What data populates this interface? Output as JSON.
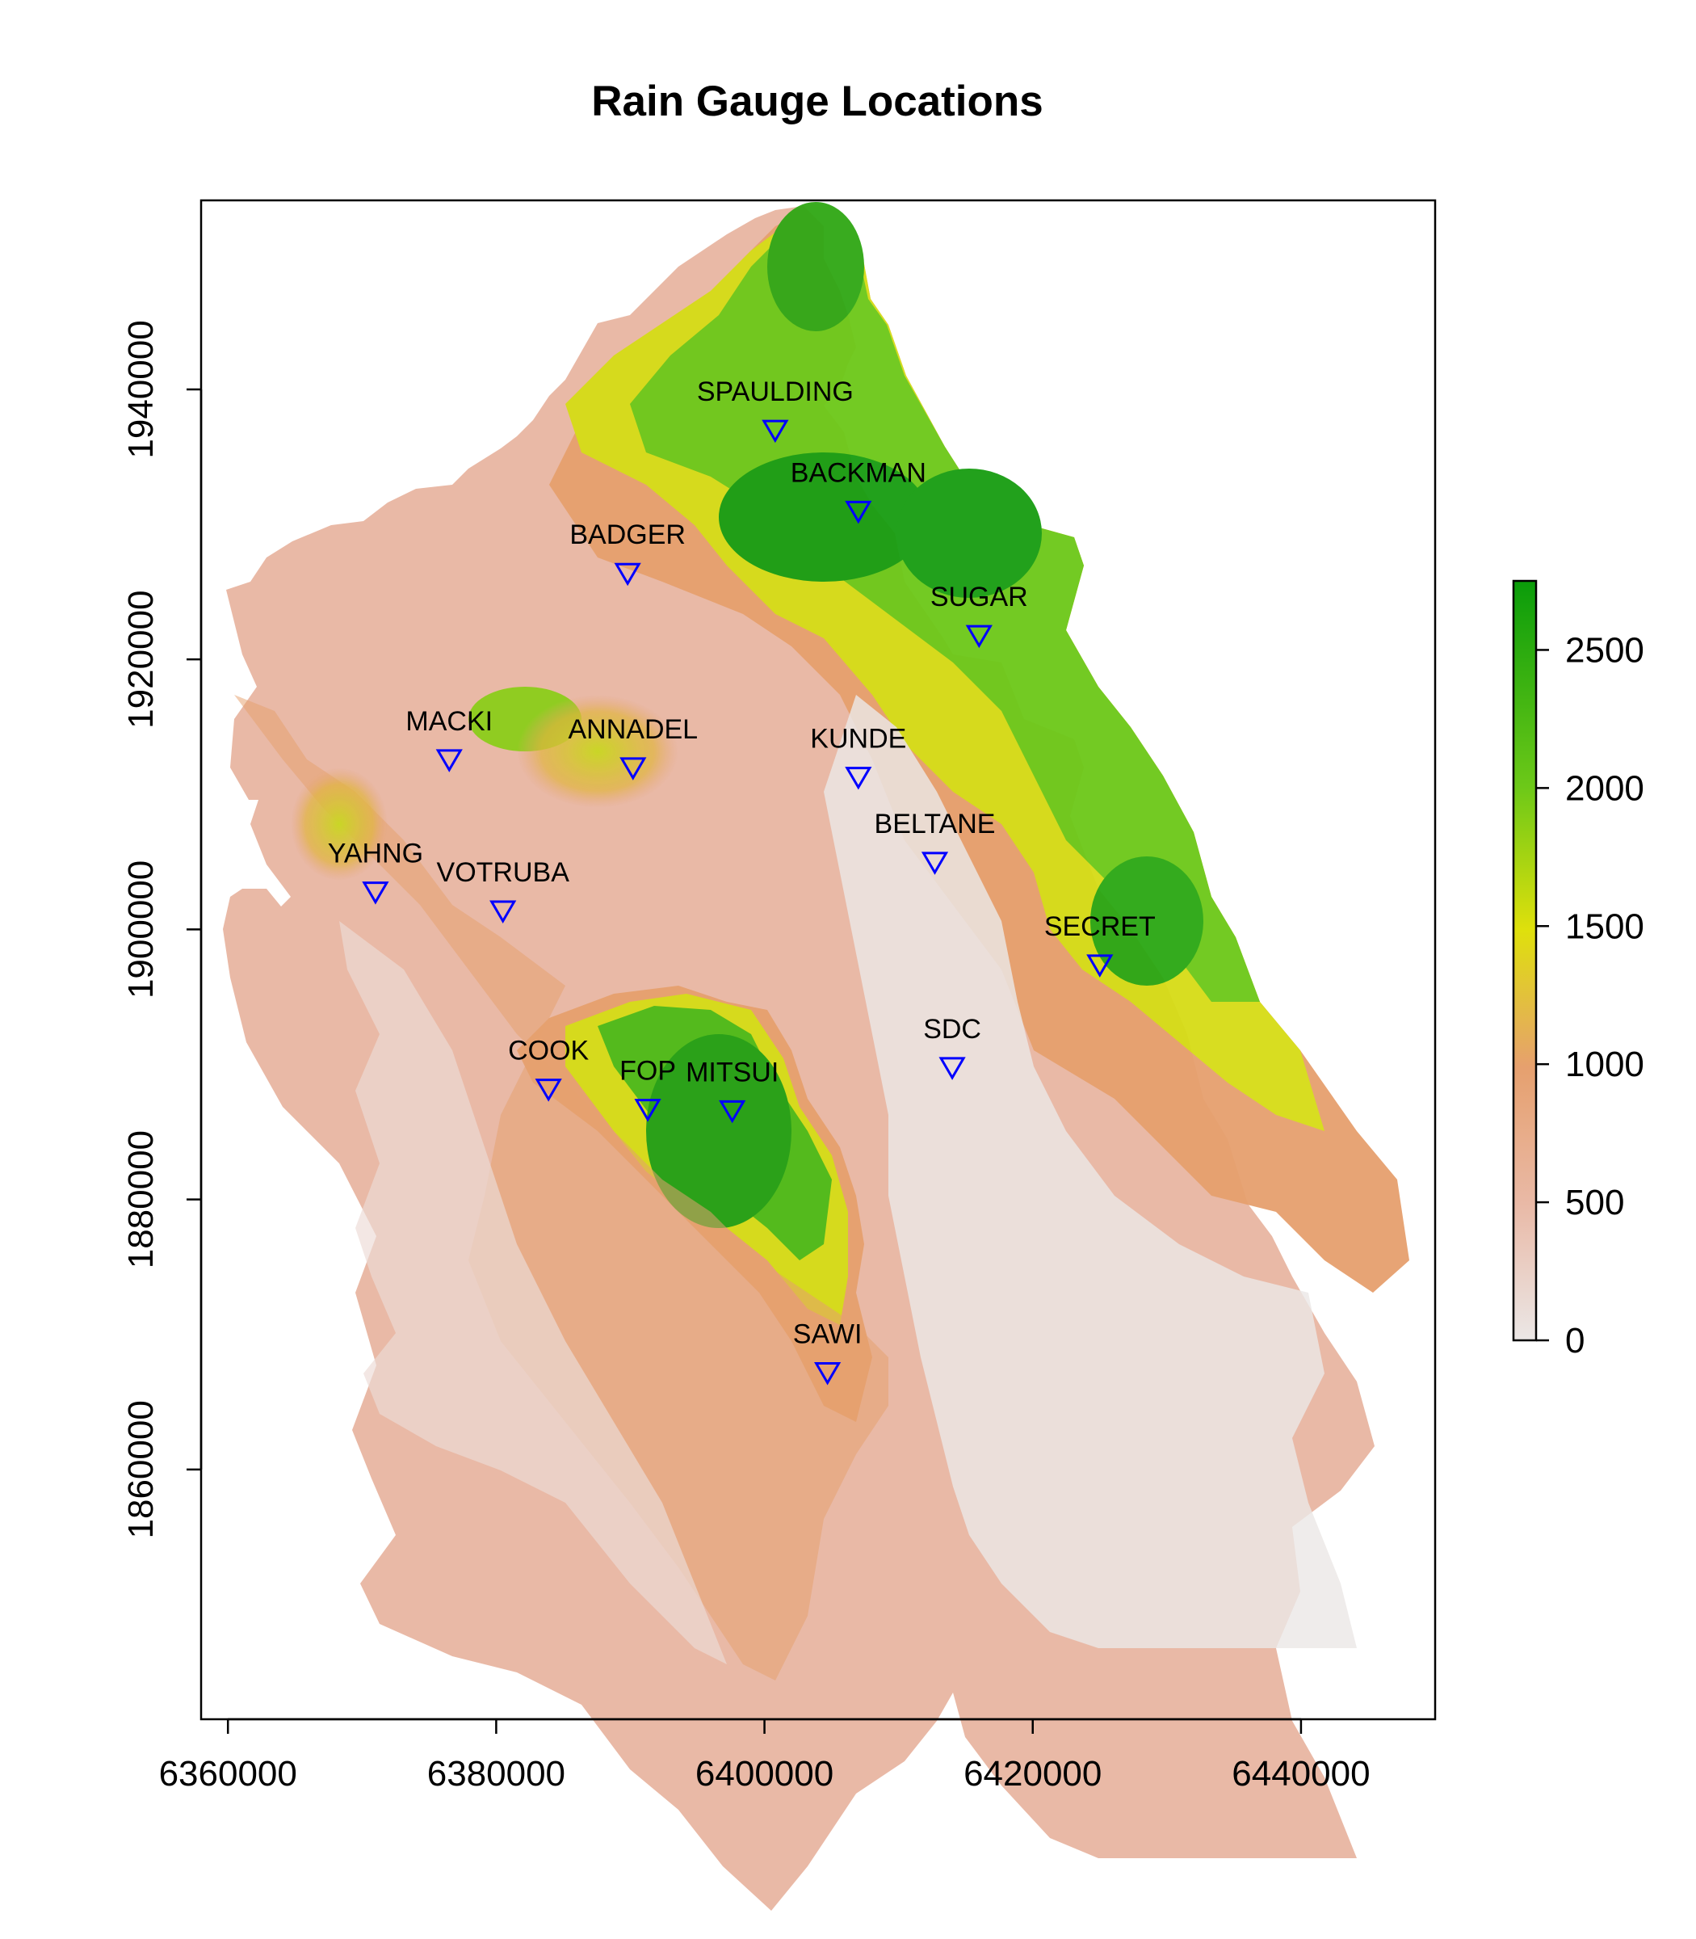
{
  "title": "Rain Gauge Locations",
  "colors": {
    "marker": "#0000ff",
    "low": "#ebe7e6",
    "mid": "#e6a06e",
    "high": "#0a9c0a"
  },
  "chart_data": {
    "type": "scatter",
    "xlim": [
      6358000,
      6450000
    ],
    "ylim": [
      1841500,
      1954000
    ],
    "xticks": [
      6360000,
      6380000,
      6400000,
      6420000,
      6440000
    ],
    "xtick_labels": [
      "6360000",
      "6380000",
      "6400000",
      "6420000",
      "6440000"
    ],
    "yticks": [
      1860000,
      1880000,
      1900000,
      1920000,
      1940000
    ],
    "ytick_labels": [
      "1860000",
      "1880000",
      "1900000",
      "1920000",
      "1940000"
    ],
    "legend": {
      "position": "right",
      "range": [
        0,
        2750
      ],
      "ticks": [
        0,
        500,
        1000,
        1500,
        2000,
        2500
      ],
      "tick_labels": [
        "0",
        "500",
        "1000",
        "1500",
        "2000",
        "2500"
      ]
    },
    "gauges": [
      {
        "name": "SPAULDING",
        "x": 6400800,
        "y": 1937000
      },
      {
        "name": "BACKMAN",
        "x": 6407000,
        "y": 1931000
      },
      {
        "name": "BADGER",
        "x": 6389800,
        "y": 1926400
      },
      {
        "name": "SUGAR",
        "x": 6416000,
        "y": 1921800
      },
      {
        "name": "MACKI",
        "x": 6376500,
        "y": 1912600
      },
      {
        "name": "ANNADEL",
        "x": 6390200,
        "y": 1912000
      },
      {
        "name": "KUNDE",
        "x": 6407000,
        "y": 1911300
      },
      {
        "name": "BELTANE",
        "x": 6412700,
        "y": 1905000
      },
      {
        "name": "YAHNG",
        "x": 6371000,
        "y": 1902800
      },
      {
        "name": "VOTRUBA",
        "x": 6380500,
        "y": 1901400
      },
      {
        "name": "SECRET",
        "x": 6425000,
        "y": 1897400
      },
      {
        "name": "SDC",
        "x": 6414000,
        "y": 1889800
      },
      {
        "name": "COOK",
        "x": 6383900,
        "y": 1888200
      },
      {
        "name": "FOP",
        "x": 6391300,
        "y": 1886700
      },
      {
        "name": "MITSUI",
        "x": 6397600,
        "y": 1886600
      },
      {
        "name": "SAWI",
        "x": 6404700,
        "y": 1867200
      }
    ]
  }
}
